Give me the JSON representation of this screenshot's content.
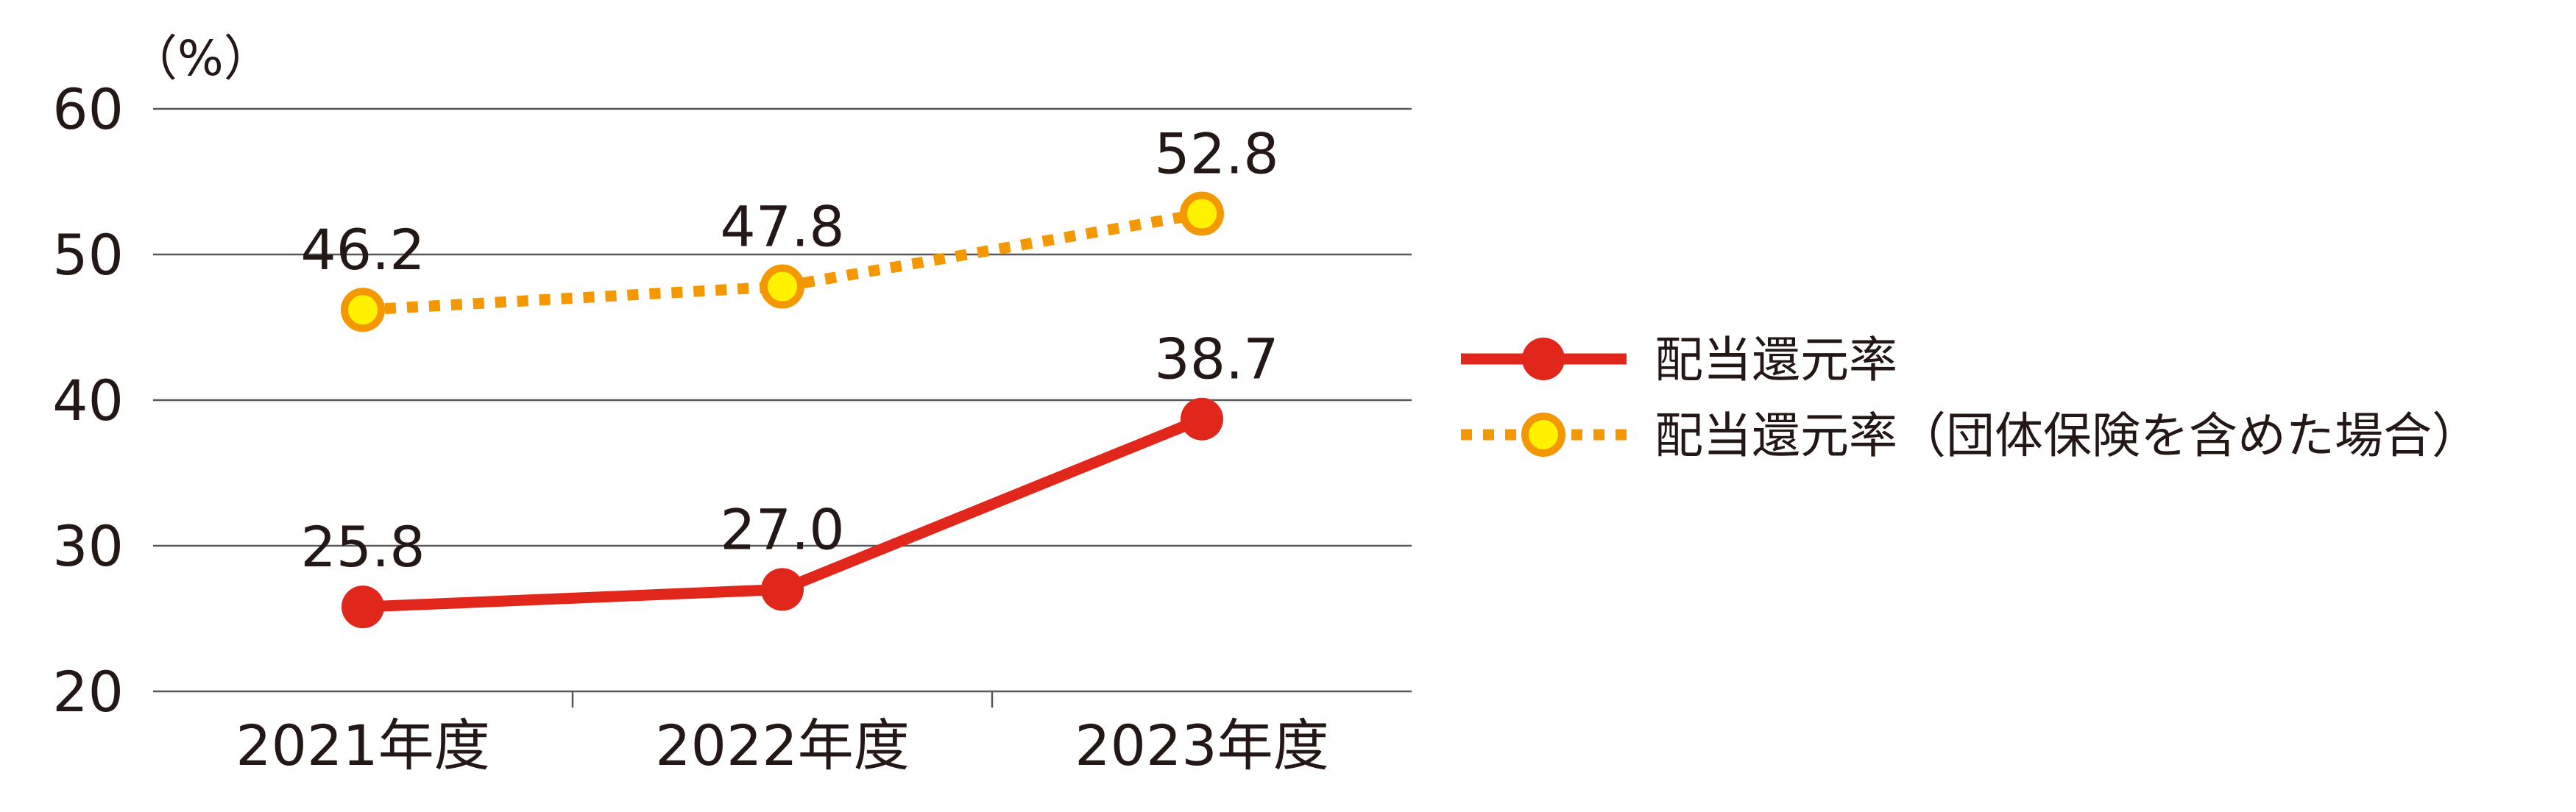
{
  "chart_data": {
    "type": "line",
    "unit_label": "（%）",
    "categories": [
      "2021年度",
      "2022年度",
      "2023年度"
    ],
    "ylim": [
      20,
      60
    ],
    "yticks": [
      20,
      30,
      40,
      50,
      60
    ],
    "grid": true,
    "legend_position": "right",
    "series": [
      {
        "name": "配当還元率",
        "values": [
          25.8,
          27.0,
          38.7
        ],
        "labels": [
          "25.8",
          "27.0",
          "38.7"
        ],
        "color": "#e1261c",
        "marker_color": "#e1261c",
        "line_style": "solid"
      },
      {
        "name": "配当還元率（団体保険を含めた場合）",
        "values": [
          46.2,
          47.8,
          52.8
        ],
        "labels": [
          "46.2",
          "47.8",
          "52.8"
        ],
        "color": "#f39800",
        "marker_color": "#fff100",
        "line_style": "dotted"
      }
    ]
  }
}
